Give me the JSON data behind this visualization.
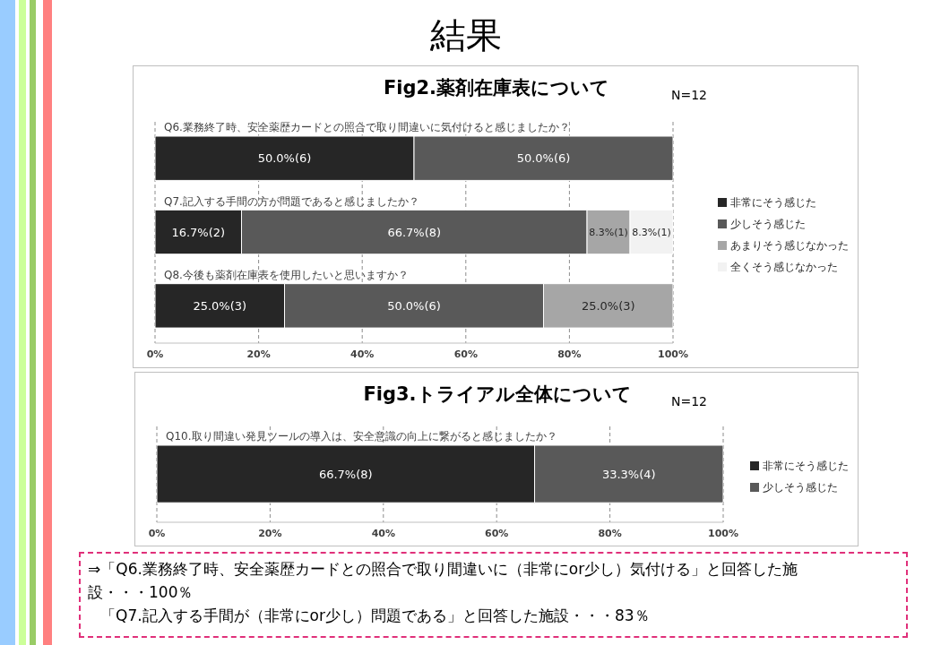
{
  "chart_data": [
    {
      "type": "bar",
      "orientation": "horizontal",
      "stacked": true,
      "title": "Fig2.薬剤在庫表について",
      "annotations": [
        "結果",
        "N=12"
      ],
      "categories": [
        "Q6.業務終了時、安全薬歴カードとの照合で取り間違いに気付けると感じましたか？",
        "Q7.記入する手間の方が問題であると感じましたか？",
        "Q8.今後も薬剤在庫表を使用したいと思いますか？"
      ],
      "series": [
        {
          "name": "非常にそう感じた",
          "color": "#262626",
          "values": [
            50,
            16.7,
            25
          ],
          "value_labels": [
            "50.0%(6)",
            "16.7%(2)",
            "25.0%(3)"
          ]
        },
        {
          "name": "少しそう感じた",
          "color": "#595959",
          "values": [
            50,
            66.7,
            50
          ],
          "value_labels": [
            "50.0%(6)",
            "66.7%(8)",
            "50.0%(6)"
          ]
        },
        {
          "name": "あまりそう感じなかった",
          "color": "#a6a6a6",
          "values": [
            null,
            8.3,
            25
          ],
          "value_labels": [
            null,
            "8.3%(1)",
            "25.0%(3)"
          ]
        },
        {
          "name": "全くそう感じなかった",
          "color": "#f2f2f2",
          "values": [
            null,
            8.3,
            null
          ],
          "value_labels": [
            null,
            "8.3%(1)",
            null
          ]
        }
      ],
      "xlim": [
        0,
        100
      ],
      "xticks": [
        {
          "value": 0,
          "label": "0%"
        },
        {
          "value": 20,
          "label": "20%"
        },
        {
          "value": 40,
          "label": "40%"
        },
        {
          "value": 60,
          "label": "60%"
        },
        {
          "value": 80,
          "label": "80%"
        },
        {
          "value": 100,
          "label": "100%"
        }
      ],
      "grid": "x",
      "legend": "right"
    },
    {
      "type": "bar",
      "orientation": "horizontal",
      "stacked": true,
      "title": "Fig3.トライアル全体について",
      "annotations": [
        "N=12",
        "⇒「Q6.業務終了時、安全薬歴カードとの照合で取り間違いに（非常にor少し）気付ける」と回答した施設・・・100％",
        "「Q7.記入する手間が（非常にor少し）問題である」と回答した施設・・・83％"
      ],
      "categories": [
        "Q10.取り間違い発見ツールの導入は、安全意識の向上に繋がると感じましたか？"
      ],
      "series": [
        {
          "name": "非常にそう感じた",
          "color": "#262626",
          "values": [
            66.7
          ],
          "value_labels": [
            "66.7%(8)"
          ]
        },
        {
          "name": "少しそう感じた",
          "color": "#595959",
          "values": [
            33.3
          ],
          "value_labels": [
            "33.3%(4)"
          ]
        }
      ],
      "xlim": [
        0,
        100
      ],
      "xticks": [
        {
          "value": 0,
          "label": "0%"
        },
        {
          "value": 20,
          "label": "20%"
        },
        {
          "value": 40,
          "label": "40%"
        },
        {
          "value": 60,
          "label": "60%"
        },
        {
          "value": 80,
          "label": "80%"
        },
        {
          "value": 100,
          "label": "100%"
        }
      ],
      "grid": "x",
      "legend": "right"
    }
  ]
}
